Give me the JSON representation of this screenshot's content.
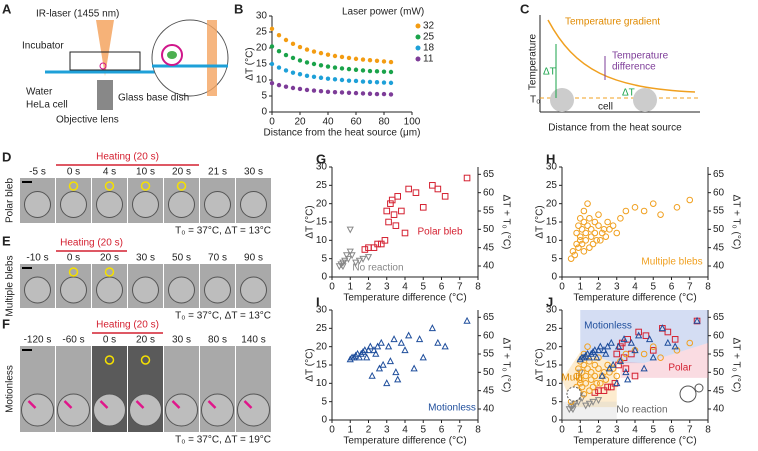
{
  "panel_letters": [
    "A",
    "B",
    "C",
    "D",
    "E",
    "F",
    "G",
    "H",
    "I",
    "J"
  ],
  "panel_a": {
    "laser": "IR-laser (1455 nm)",
    "incubator": "Incubator",
    "water": "Water",
    "cell": "HeLa cell",
    "dish": "Glass base dish",
    "objective": "Objective lens"
  },
  "panel_c": {
    "y_label": "Temperature",
    "x_label": "Distance from the heat source",
    "gradient": "Temperature gradient",
    "difference_1": "Temperature",
    "difference_2": "difference",
    "delta_t": "ΔT",
    "t0": "T₀",
    "cell": "cell"
  },
  "panel_d": {
    "side_label": "Polar bleb",
    "heating": "Heating (20 s)",
    "times": [
      "-5 s",
      "0 s",
      "4 s",
      "10 s",
      "20 s",
      "21 s",
      "30 s"
    ],
    "condition": "T₀ = 37°C, ΔT = 13°C"
  },
  "panel_e": {
    "side_label": "Multiple blebs",
    "heating": "Heating (20 s)",
    "times": [
      "-10 s",
      "0 s",
      "20 s",
      "30 s",
      "50 s",
      "70 s",
      "90 s"
    ],
    "condition": "T₀ = 37°C, ΔT = 13°C"
  },
  "panel_f": {
    "side_label": "Motionless",
    "heating": "Heating (20 s)",
    "times": [
      "-120 s",
      "-60 s",
      "0 s",
      "20 s",
      "30 s",
      "80 s",
      "140 s"
    ],
    "condition": "T₀ = 37°C, ΔT = 19°C"
  },
  "chart_data": [
    {
      "type": "scatter",
      "x_label": "Distance from the heat source (μm)",
      "y_label": "ΔT (°C)",
      "legend_title": "Laser power (mW)",
      "marker": "dot",
      "x": [
        0,
        5,
        10,
        15,
        20,
        25,
        30,
        35,
        40,
        45,
        50,
        55,
        60,
        65,
        70,
        75,
        80,
        85
      ],
      "series": [
        {
          "name": "32",
          "color": "#f39c12",
          "values": [
            26,
            24,
            22.5,
            21.3,
            20.3,
            19.5,
            18.9,
            18.4,
            17.9,
            17.5,
            17.2,
            16.9,
            16.6,
            16.4,
            16.2,
            16.0,
            15.8,
            15.6
          ]
        },
        {
          "name": "25",
          "color": "#1aa34a",
          "values": [
            20.5,
            19,
            17.8,
            16.9,
            16.1,
            15.5,
            15,
            14.6,
            14.2,
            13.9,
            13.6,
            13.4,
            13.2,
            13,
            12.8,
            12.7,
            12.6,
            12.5
          ]
        },
        {
          "name": "18",
          "color": "#1ea0d8",
          "values": [
            15,
            13.9,
            13,
            12.3,
            11.8,
            11.3,
            11,
            10.7,
            10.4,
            10.2,
            10,
            9.8,
            9.7,
            9.5,
            9.4,
            9.3,
            9.2,
            9.1
          ]
        },
        {
          "name": "11",
          "color": "#7d3c98",
          "values": [
            9,
            8.4,
            7.9,
            7.5,
            7.2,
            6.9,
            6.7,
            6.5,
            6.3,
            6.2,
            6.1,
            6.0,
            5.9,
            5.8,
            5.7,
            5.6,
            5.6,
            5.5
          ]
        }
      ],
      "xlim": [
        0,
        100
      ],
      "ylim": [
        0,
        30
      ],
      "xticks": [
        0,
        20,
        40,
        60,
        80,
        100
      ],
      "yticks": [
        0,
        5,
        10,
        15,
        20,
        25,
        30
      ]
    },
    {
      "type": "scatter",
      "x_label": "Temperature difference (°C)",
      "y_label": "ΔT (°C)",
      "y2_label": "ΔT + T₀ (°C)",
      "series": [
        {
          "name": "Polar bleb",
          "color": "#d42030",
          "marker": "square",
          "x": [
            1.8,
            2.0,
            2.3,
            2.5,
            2.7,
            2.9,
            3.0,
            3.1,
            3.2,
            3.3,
            3.4,
            3.5,
            3.6,
            3.8,
            4.0,
            4.2,
            4.6,
            5.0,
            5.5,
            5.8,
            6.2,
            7.4
          ],
          "values": [
            7.5,
            8,
            8,
            9,
            9,
            10,
            18,
            15,
            20,
            21,
            17,
            14,
            22,
            18,
            12,
            24,
            23,
            19,
            25,
            24,
            22,
            27
          ]
        },
        {
          "name": "No reaction",
          "color": "#888888",
          "marker": "triangle-down",
          "x": [
            0.4,
            0.5,
            0.6,
            0.7,
            0.8,
            0.9,
            1.0,
            1.1,
            1.3,
            1.5,
            1.7,
            2.0,
            0.6,
            1.0
          ],
          "values": [
            3,
            3.5,
            4,
            4.5,
            6,
            5,
            7,
            6,
            4,
            4.5,
            5,
            5.5,
            3,
            13
          ]
        }
      ],
      "xlim": [
        0,
        8
      ],
      "ylim": [
        0,
        30
      ],
      "y2lim": [
        37,
        67
      ],
      "xticks": [
        0,
        1,
        2,
        3,
        4,
        5,
        6,
        7,
        8
      ],
      "yticks": [
        0,
        5,
        10,
        15,
        20,
        25,
        30
      ],
      "y2ticks": [
        40,
        45,
        50,
        55,
        60,
        65
      ]
    },
    {
      "type": "scatter",
      "x_label": "Temperature difference (°C)",
      "y_label": "ΔT (°C)",
      "y2_label": "ΔT + T₀ (°C)",
      "series": [
        {
          "name": "Multiple blebs",
          "color": "#f0a020",
          "marker": "circle",
          "x": [
            0.5,
            0.6,
            0.7,
            0.8,
            0.8,
            0.9,
            0.9,
            1.0,
            1.0,
            1.0,
            1.1,
            1.1,
            1.2,
            1.2,
            1.2,
            1.3,
            1.3,
            1.4,
            1.4,
            1.5,
            1.5,
            1.6,
            1.6,
            1.7,
            1.8,
            1.8,
            1.9,
            2.0,
            2.0,
            2.1,
            2.2,
            2.3,
            2.4,
            2.5,
            2.6,
            2.8,
            3.0,
            3.2,
            3.5,
            4.0,
            4.5,
            5.0,
            5.4,
            6.3,
            7.0
          ],
          "values": [
            5,
            7,
            6,
            9,
            12,
            8,
            14,
            10,
            11,
            16,
            9,
            13,
            7,
            15,
            18,
            10,
            12,
            14,
            20,
            8,
            16,
            11,
            13,
            9,
            12,
            15,
            10,
            14,
            17,
            10,
            12,
            13,
            11,
            15,
            13,
            14,
            12,
            16,
            18,
            19,
            18,
            20,
            17,
            19,
            21
          ]
        }
      ],
      "xlim": [
        0,
        8
      ],
      "ylim": [
        0,
        30
      ],
      "y2lim": [
        37,
        67
      ],
      "xticks": [
        0,
        1,
        2,
        3,
        4,
        5,
        6,
        7,
        8
      ],
      "yticks": [
        0,
        5,
        10,
        15,
        20,
        25,
        30
      ],
      "y2ticks": [
        40,
        45,
        50,
        55,
        60,
        65
      ]
    },
    {
      "type": "scatter",
      "x_label": "Temperature difference (°C)",
      "y_label": "ΔT (°C)",
      "y2_label": "ΔT + T₀ (°C)",
      "series": [
        {
          "name": "Motionless",
          "color": "#1f4e9c",
          "marker": "triangle",
          "x": [
            1.0,
            1.1,
            1.2,
            1.3,
            1.4,
            1.5,
            1.6,
            1.7,
            1.8,
            1.9,
            2.0,
            2.1,
            2.2,
            2.3,
            2.4,
            2.5,
            2.6,
            2.7,
            2.8,
            3.0,
            3.1,
            3.2,
            3.4,
            3.5,
            3.6,
            3.8,
            4.0,
            4.2,
            4.5,
            4.8,
            5.0,
            5.5,
            5.8,
            6.2,
            7.4
          ],
          "values": [
            16.5,
            17,
            17,
            17.5,
            18,
            17,
            18,
            18.5,
            19,
            17,
            19,
            20,
            12,
            19,
            18,
            20,
            14,
            21,
            15,
            10,
            20,
            16,
            22,
            13,
            11,
            21,
            19,
            23,
            14,
            22,
            17,
            25,
            21,
            20,
            27
          ]
        }
      ],
      "xlim": [
        0,
        8
      ],
      "ylim": [
        0,
        30
      ],
      "y2lim": [
        37,
        67
      ],
      "xticks": [
        0,
        1,
        2,
        3,
        4,
        5,
        6,
        7,
        8
      ],
      "yticks": [
        0,
        5,
        10,
        15,
        20,
        25,
        30
      ],
      "y2ticks": [
        40,
        45,
        50,
        55,
        60,
        65
      ]
    },
    {
      "type": "combined",
      "x_label": "Temperature difference (°C)",
      "y_label": "ΔT (°C)",
      "y2_label": "ΔT + T₀ (°C)",
      "annotations": [
        "Motionless",
        "Multi",
        "Polar",
        "No reaction"
      ],
      "xlim": [
        0,
        8
      ],
      "ylim": [
        0,
        30
      ],
      "y2lim": [
        37,
        67
      ],
      "xticks": [
        0,
        1,
        2,
        3,
        4,
        5,
        6,
        7,
        8
      ],
      "yticks": [
        0,
        5,
        10,
        15,
        20,
        25,
        30
      ],
      "y2ticks": [
        40,
        45,
        50,
        55,
        60,
        65
      ]
    }
  ]
}
